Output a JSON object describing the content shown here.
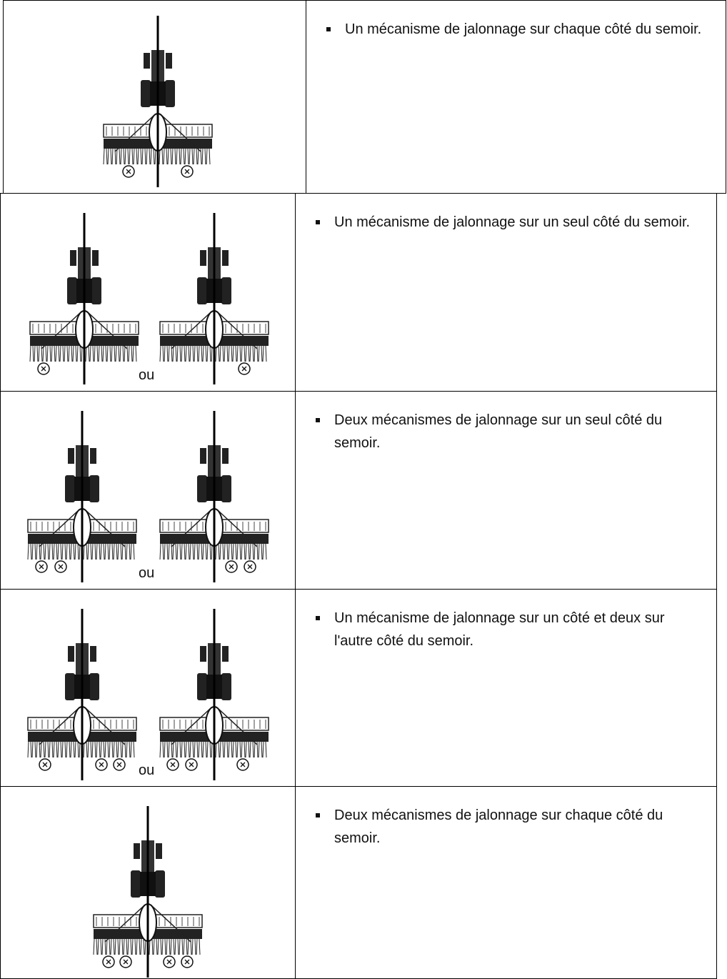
{
  "rows": [
    {
      "text": "Un mécanisme de jalonnage sur chaque côté du semoir."
    },
    {
      "text": "Un mécanisme de jalonnage sur un seul côté du semoir.",
      "separator": "ou"
    },
    {
      "text": "Deux mécanismes de jalonnage sur un seul côté du semoir.",
      "separator": "ou"
    },
    {
      "text": "Un mécanisme de jalonnage sur un côté et deux sur l'autre côté du semoir.",
      "separator": "ou"
    },
    {
      "text": "Deux mécanismes de jalonnage sur chaque côté du semoir."
    }
  ]
}
